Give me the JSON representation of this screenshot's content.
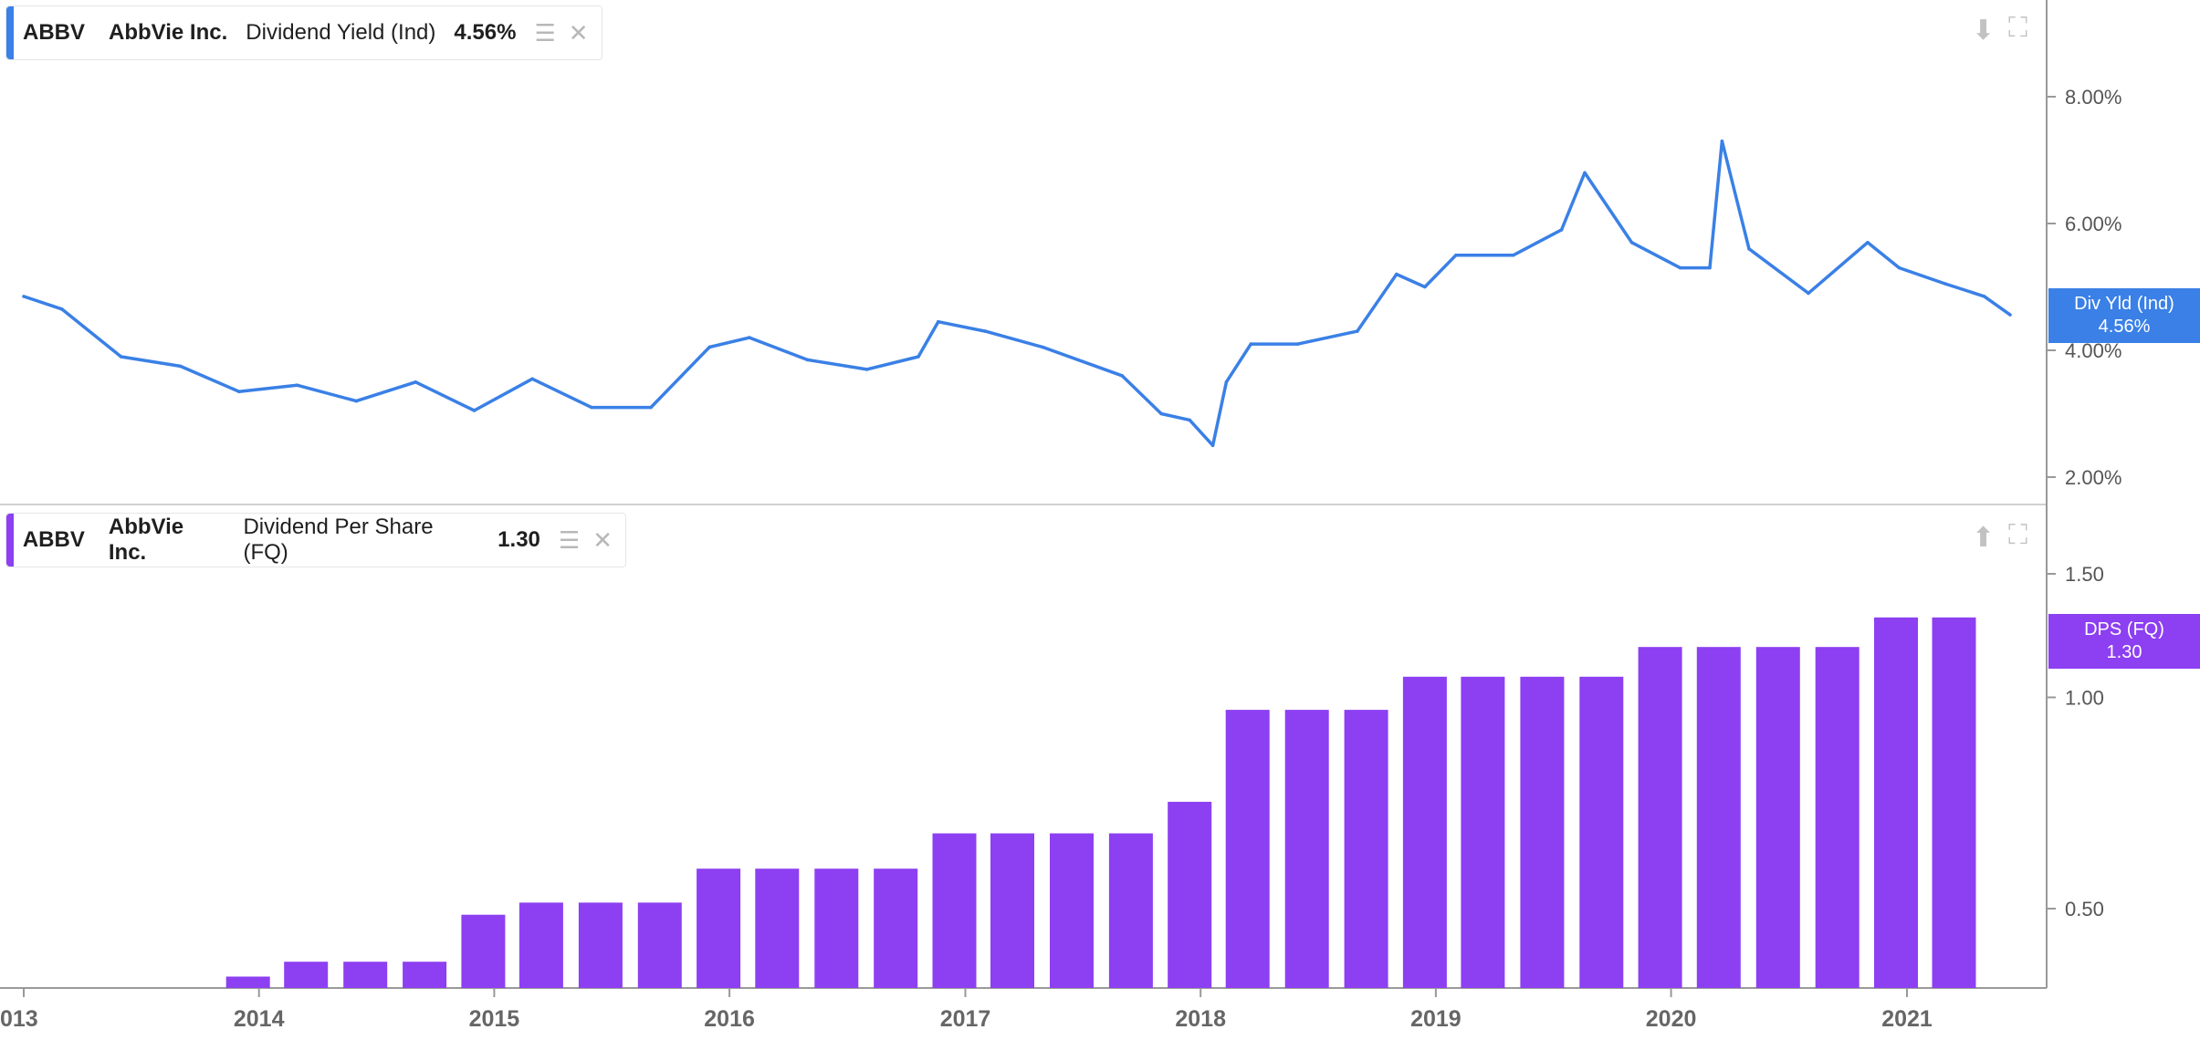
{
  "colors": {
    "yield": "#3a80e6",
    "dps": "#8d3ff2",
    "axis": "#999999",
    "text": "#555555"
  },
  "panel_top": {
    "ticker": "ABBV",
    "company": "AbbVie Inc.",
    "metric": "Dividend Yield (Ind)",
    "value": "4.56%",
    "badge_label": "Div Yld (Ind)",
    "badge_value": "4.56%",
    "icons": [
      "layers-icon",
      "close-icon",
      "download-icon",
      "fullscreen-icon"
    ]
  },
  "panel_bottom": {
    "ticker": "ABBV",
    "company": "AbbVie Inc.",
    "metric": "Dividend Per Share (FQ)",
    "value": "1.30",
    "badge_label": "DPS (FQ)",
    "badge_value": "1.30",
    "icons": [
      "layers-icon",
      "close-icon",
      "upload-icon",
      "fullscreen-icon"
    ]
  },
  "chart_data": [
    {
      "type": "line",
      "series": [
        {
          "x": [
            "2013-01-01",
            "2013-03-01",
            "2013-06-01",
            "2013-09-01",
            "2013-12-01",
            "2014-03-01",
            "2014-06-01",
            "2014-09-01",
            "2014-12-01",
            "2015-03-01",
            "2015-06-01",
            "2015-09-01",
            "2015-12-01",
            "2016-02-01",
            "2016-05-01",
            "2016-08-01",
            "2016-10-20",
            "2016-11-20",
            "2017-02-01",
            "2017-05-01",
            "2017-09-01",
            "2017-11-01",
            "2017-12-15",
            "2018-01-20",
            "2018-02-10",
            "2018-03-20",
            "2018-06-01",
            "2018-09-01",
            "2018-11-01",
            "2018-12-15",
            "2019-02-01",
            "2019-05-01",
            "2019-07-15",
            "2019-08-20",
            "2019-11-01",
            "2020-01-15",
            "2020-03-01",
            "2020-03-20",
            "2020-05-01",
            "2020-08-01",
            "2020-11-01",
            "2020-12-20",
            "2021-03-01",
            "2021-05-01",
            "2021-06-10"
          ],
          "y": [
            4.85,
            4.65,
            3.9,
            3.75,
            3.35,
            3.45,
            3.2,
            3.5,
            3.05,
            3.55,
            3.1,
            3.1,
            4.05,
            4.2,
            3.85,
            3.7,
            3.9,
            4.45,
            4.3,
            4.05,
            3.6,
            3.0,
            2.9,
            2.5,
            3.5,
            4.1,
            4.1,
            4.3,
            5.2,
            5.0,
            5.5,
            5.5,
            5.9,
            6.8,
            5.7,
            5.3,
            5.3,
            7.3,
            5.6,
            4.9,
            5.7,
            5.3,
            5.05,
            4.85,
            4.56
          ]
        }
      ],
      "y_ticks": [
        "2.00%",
        "4.00%",
        "6.00%",
        "8.00%"
      ],
      "ylim": [
        1.7,
        9.4
      ],
      "grid": false
    },
    {
      "type": "bar",
      "categories": [
        "2013-12",
        "2014-03",
        "2014-06",
        "2014-09",
        "2014-12",
        "2015-03",
        "2015-06",
        "2015-09",
        "2015-12",
        "2016-03",
        "2016-06",
        "2016-09",
        "2016-12",
        "2017-03",
        "2017-06",
        "2017-09",
        "2017-12",
        "2018-03",
        "2018-06",
        "2018-09",
        "2018-12",
        "2019-03",
        "2019-06",
        "2019-09",
        "2019-12",
        "2020-03",
        "2020-06",
        "2020-09",
        "2020-12",
        "2021-03"
      ],
      "values": [
        0.4,
        0.42,
        0.42,
        0.42,
        0.49,
        0.51,
        0.51,
        0.51,
        0.57,
        0.57,
        0.57,
        0.57,
        0.64,
        0.64,
        0.64,
        0.64,
        0.71,
        0.96,
        0.96,
        0.96,
        1.07,
        1.07,
        1.07,
        1.07,
        1.18,
        1.18,
        1.18,
        1.18,
        1.3,
        1.3
      ],
      "y_ticks": [
        "0.50",
        "1.00",
        "1.50"
      ],
      "x_ticks": [
        "013",
        "2014",
        "2015",
        "2016",
        "2017",
        "2018",
        "2019",
        "2020",
        "2021"
      ],
      "grid": false
    }
  ]
}
